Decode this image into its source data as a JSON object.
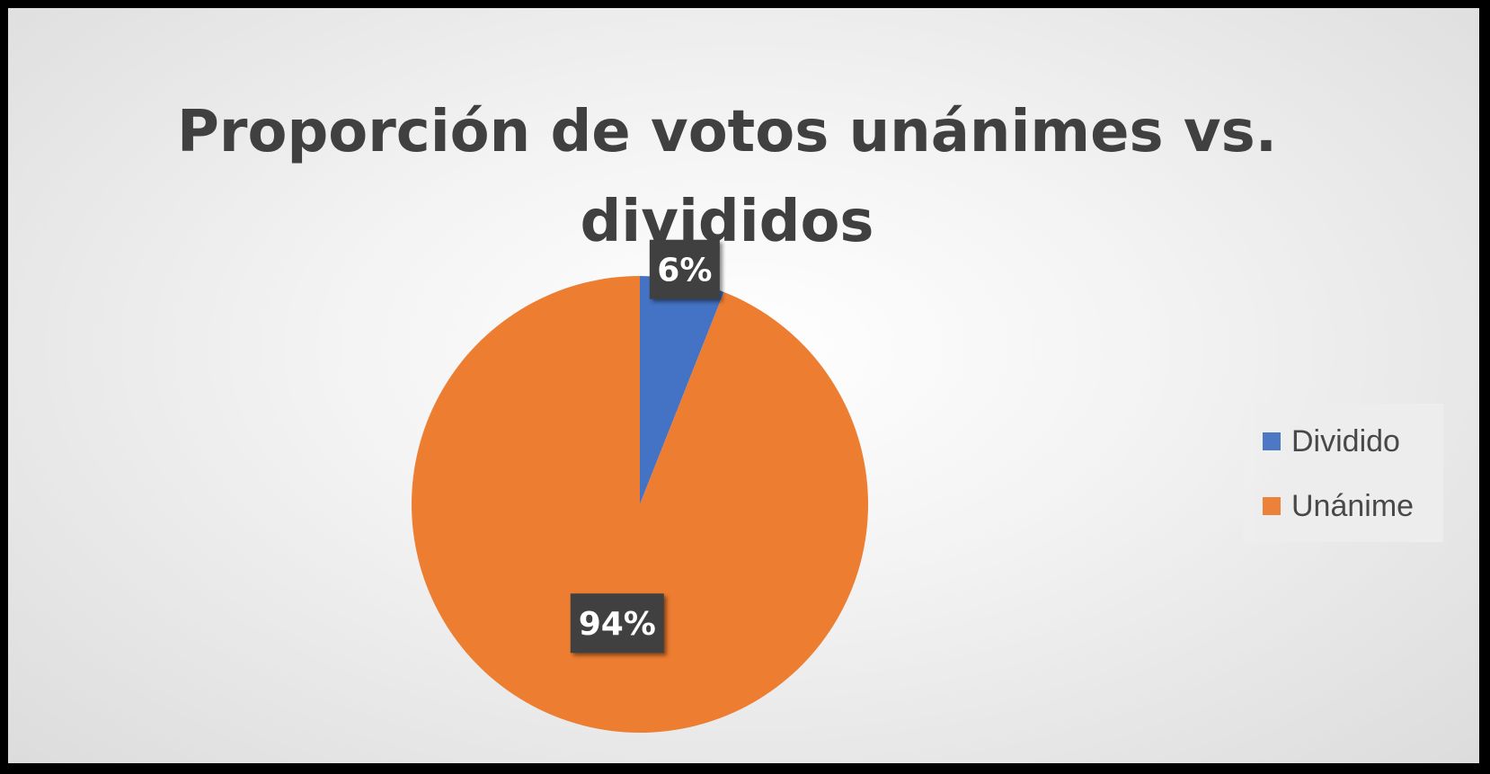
{
  "chart_data": {
    "type": "pie",
    "title": "Proporción de votos unánimes vs. divididos",
    "categories": [
      "Dividido",
      "Unánime"
    ],
    "values": [
      6,
      94
    ],
    "data_labels": [
      "6%",
      "94%"
    ],
    "colors": [
      "#4472c4",
      "#ed7d31"
    ],
    "legend_position": "right",
    "start_angle_deg": 0,
    "direction": "clockwise"
  }
}
